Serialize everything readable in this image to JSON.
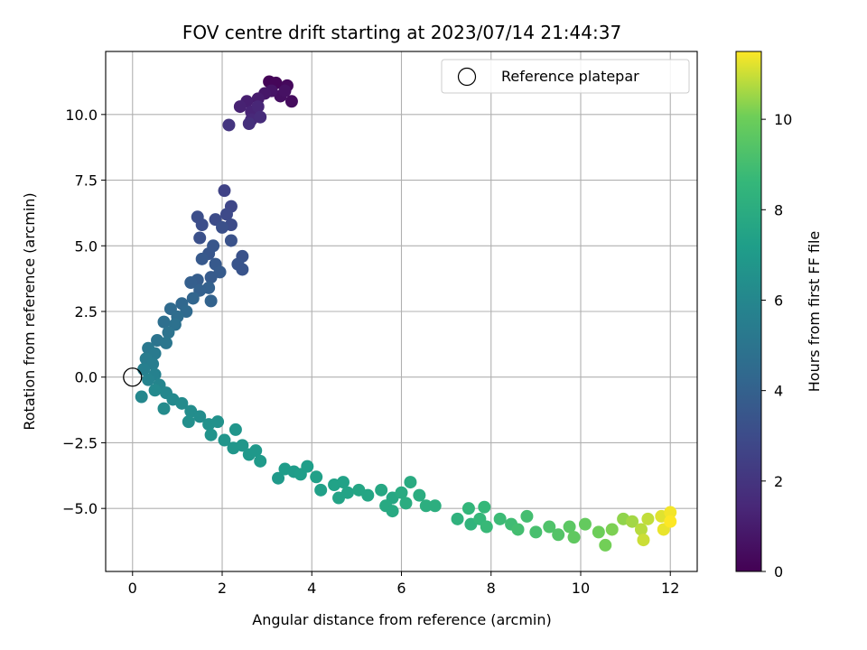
{
  "chart_data": {
    "type": "scatter",
    "title": "FOV centre drift starting at 2023/07/14 21:44:37",
    "xlabel": "Angular distance from reference (arcmin)",
    "ylabel": "Rotation from reference (arcmin)",
    "xlim": [
      -0.6,
      12.6
    ],
    "ylim": [
      -7.4,
      12.4
    ],
    "x_ticks": [
      0,
      2,
      4,
      6,
      8,
      10,
      12
    ],
    "x_tick_labels": [
      "0",
      "2",
      "4",
      "6",
      "8",
      "10",
      "12"
    ],
    "y_ticks": [
      -5.0,
      -2.5,
      0.0,
      2.5,
      5.0,
      7.5,
      10.0
    ],
    "y_tick_labels": [
      "−5.0",
      "−2.5",
      "0.0",
      "2.5",
      "5.0",
      "7.5",
      "10.0"
    ],
    "grid": true,
    "legend": {
      "placement": "top-right",
      "entries": [
        "Reference platepar"
      ]
    },
    "reference_point": {
      "x": 0,
      "y": 0,
      "label": "Reference platepar"
    },
    "colormap": "viridis",
    "colorbar": {
      "label": "Hours from first FF file",
      "range": [
        0,
        11.5
      ],
      "ticks": [
        0,
        2,
        4,
        6,
        8,
        10
      ],
      "tick_labels": [
        "0",
        "2",
        "4",
        "6",
        "8",
        "10"
      ]
    },
    "series": [
      {
        "points": [
          {
            "x": 3.05,
            "y": 11.25,
            "c": 0.1
          },
          {
            "x": 3.2,
            "y": 11.2,
            "c": 0.2
          },
          {
            "x": 3.45,
            "y": 11.1,
            "c": 0.3
          },
          {
            "x": 3.55,
            "y": 10.5,
            "c": 0.4
          },
          {
            "x": 3.3,
            "y": 10.7,
            "c": 0.5
          },
          {
            "x": 3.4,
            "y": 10.9,
            "c": 0.6
          },
          {
            "x": 3.1,
            "y": 10.9,
            "c": 0.7
          },
          {
            "x": 2.95,
            "y": 10.8,
            "c": 0.8
          },
          {
            "x": 2.8,
            "y": 10.6,
            "c": 1.0
          },
          {
            "x": 2.55,
            "y": 10.5,
            "c": 1.1
          },
          {
            "x": 2.4,
            "y": 10.3,
            "c": 1.2
          },
          {
            "x": 2.65,
            "y": 10.1,
            "c": 1.3
          },
          {
            "x": 2.8,
            "y": 10.3,
            "c": 1.4
          },
          {
            "x": 2.65,
            "y": 9.8,
            "c": 1.5
          },
          {
            "x": 2.85,
            "y": 9.9,
            "c": 1.6
          },
          {
            "x": 2.6,
            "y": 9.65,
            "c": 1.8
          },
          {
            "x": 2.15,
            "y": 9.6,
            "c": 2.0
          },
          {
            "x": 2.05,
            "y": 7.1,
            "c": 2.6
          },
          {
            "x": 2.2,
            "y": 6.5,
            "c": 2.8
          },
          {
            "x": 2.1,
            "y": 6.2,
            "c": 2.9
          },
          {
            "x": 1.85,
            "y": 6.0,
            "c": 3.0
          },
          {
            "x": 2.2,
            "y": 5.8,
            "c": 3.0
          },
          {
            "x": 1.45,
            "y": 6.1,
            "c": 3.1
          },
          {
            "x": 1.55,
            "y": 5.8,
            "c": 3.1
          },
          {
            "x": 1.5,
            "y": 5.3,
            "c": 3.2
          },
          {
            "x": 2.0,
            "y": 5.7,
            "c": 3.2
          },
          {
            "x": 2.2,
            "y": 5.2,
            "c": 3.3
          },
          {
            "x": 2.45,
            "y": 4.6,
            "c": 3.3
          },
          {
            "x": 2.35,
            "y": 4.3,
            "c": 3.4
          },
          {
            "x": 2.45,
            "y": 4.1,
            "c": 3.4
          },
          {
            "x": 1.8,
            "y": 5.0,
            "c": 3.5
          },
          {
            "x": 1.7,
            "y": 4.7,
            "c": 3.5
          },
          {
            "x": 1.55,
            "y": 4.5,
            "c": 3.6
          },
          {
            "x": 1.85,
            "y": 4.3,
            "c": 3.6
          },
          {
            "x": 1.95,
            "y": 4.0,
            "c": 3.7
          },
          {
            "x": 1.75,
            "y": 3.8,
            "c": 3.7
          },
          {
            "x": 1.45,
            "y": 3.7,
            "c": 3.8
          },
          {
            "x": 1.3,
            "y": 3.6,
            "c": 3.9
          },
          {
            "x": 1.7,
            "y": 3.4,
            "c": 4.0
          },
          {
            "x": 1.5,
            "y": 3.3,
            "c": 4.0
          },
          {
            "x": 1.75,
            "y": 2.9,
            "c": 4.1
          },
          {
            "x": 1.35,
            "y": 3.0,
            "c": 4.2
          },
          {
            "x": 1.1,
            "y": 2.8,
            "c": 4.3
          },
          {
            "x": 1.2,
            "y": 2.5,
            "c": 4.4
          },
          {
            "x": 0.85,
            "y": 2.6,
            "c": 4.5
          },
          {
            "x": 1.0,
            "y": 2.3,
            "c": 4.6
          },
          {
            "x": 0.7,
            "y": 2.1,
            "c": 4.7
          },
          {
            "x": 0.95,
            "y": 2.0,
            "c": 4.8
          },
          {
            "x": 0.8,
            "y": 1.7,
            "c": 4.9
          },
          {
            "x": 0.55,
            "y": 1.4,
            "c": 5.0
          },
          {
            "x": 0.75,
            "y": 1.3,
            "c": 5.1
          },
          {
            "x": 0.35,
            "y": 1.1,
            "c": 5.2
          },
          {
            "x": 0.5,
            "y": 0.9,
            "c": 5.3
          },
          {
            "x": 0.3,
            "y": 0.7,
            "c": 5.4
          },
          {
            "x": 0.45,
            "y": 0.5,
            "c": 5.5
          },
          {
            "x": 0.25,
            "y": 0.3,
            "c": 5.6
          },
          {
            "x": 0.5,
            "y": 0.1,
            "c": 5.7
          },
          {
            "x": 0.35,
            "y": -0.1,
            "c": 5.8
          },
          {
            "x": 0.6,
            "y": -0.3,
            "c": 5.9
          },
          {
            "x": 0.2,
            "y": -0.75,
            "c": 6.0
          },
          {
            "x": 0.75,
            "y": -0.6,
            "c": 6.0
          },
          {
            "x": 0.5,
            "y": -0.5,
            "c": 6.1
          },
          {
            "x": 0.9,
            "y": -0.85,
            "c": 6.1
          },
          {
            "x": 0.7,
            "y": -1.2,
            "c": 6.2
          },
          {
            "x": 1.1,
            "y": -1.0,
            "c": 6.2
          },
          {
            "x": 1.3,
            "y": -1.3,
            "c": 6.3
          },
          {
            "x": 1.5,
            "y": -1.5,
            "c": 6.3
          },
          {
            "x": 1.25,
            "y": -1.7,
            "c": 6.4
          },
          {
            "x": 1.7,
            "y": -1.8,
            "c": 6.5
          },
          {
            "x": 1.9,
            "y": -1.7,
            "c": 6.5
          },
          {
            "x": 1.75,
            "y": -2.2,
            "c": 6.6
          },
          {
            "x": 2.05,
            "y": -2.4,
            "c": 6.7
          },
          {
            "x": 2.3,
            "y": -2.0,
            "c": 6.7
          },
          {
            "x": 2.25,
            "y": -2.7,
            "c": 6.8
          },
          {
            "x": 2.45,
            "y": -2.6,
            "c": 6.8
          },
          {
            "x": 2.6,
            "y": -2.95,
            "c": 6.9
          },
          {
            "x": 2.75,
            "y": -2.8,
            "c": 6.9
          },
          {
            "x": 2.85,
            "y": -3.2,
            "c": 7.0
          },
          {
            "x": 3.25,
            "y": -3.85,
            "c": 7.0
          },
          {
            "x": 3.4,
            "y": -3.5,
            "c": 7.1
          },
          {
            "x": 3.6,
            "y": -3.6,
            "c": 7.1
          },
          {
            "x": 3.75,
            "y": -3.7,
            "c": 7.2
          },
          {
            "x": 3.9,
            "y": -3.4,
            "c": 7.2
          },
          {
            "x": 4.1,
            "y": -3.8,
            "c": 7.3
          },
          {
            "x": 4.2,
            "y": -4.3,
            "c": 7.3
          },
          {
            "x": 4.5,
            "y": -4.1,
            "c": 7.4
          },
          {
            "x": 4.7,
            "y": -4.0,
            "c": 7.4
          },
          {
            "x": 4.8,
            "y": -4.4,
            "c": 7.5
          },
          {
            "x": 4.6,
            "y": -4.6,
            "c": 7.5
          },
          {
            "x": 5.05,
            "y": -4.3,
            "c": 7.6
          },
          {
            "x": 5.25,
            "y": -4.5,
            "c": 7.6
          },
          {
            "x": 5.55,
            "y": -4.3,
            "c": 7.7
          },
          {
            "x": 5.8,
            "y": -4.6,
            "c": 7.7
          },
          {
            "x": 5.65,
            "y": -4.9,
            "c": 7.8
          },
          {
            "x": 5.8,
            "y": -5.1,
            "c": 7.8
          },
          {
            "x": 6.0,
            "y": -4.4,
            "c": 7.9
          },
          {
            "x": 6.2,
            "y": -4.0,
            "c": 7.9
          },
          {
            "x": 6.4,
            "y": -4.5,
            "c": 8.0
          },
          {
            "x": 6.1,
            "y": -4.8,
            "c": 8.0
          },
          {
            "x": 6.55,
            "y": -4.9,
            "c": 8.1
          },
          {
            "x": 6.75,
            "y": -4.9,
            "c": 8.1
          },
          {
            "x": 7.25,
            "y": -5.4,
            "c": 8.3
          },
          {
            "x": 7.55,
            "y": -5.6,
            "c": 8.4
          },
          {
            "x": 7.5,
            "y": -5.0,
            "c": 8.5
          },
          {
            "x": 7.75,
            "y": -5.4,
            "c": 8.6
          },
          {
            "x": 7.85,
            "y": -4.95,
            "c": 8.6
          },
          {
            "x": 7.9,
            "y": -5.7,
            "c": 8.7
          },
          {
            "x": 8.2,
            "y": -5.4,
            "c": 8.8
          },
          {
            "x": 8.45,
            "y": -5.6,
            "c": 8.9
          },
          {
            "x": 8.6,
            "y": -5.8,
            "c": 9.0
          },
          {
            "x": 8.8,
            "y": -5.3,
            "c": 9.0
          },
          {
            "x": 9.0,
            "y": -5.9,
            "c": 9.1
          },
          {
            "x": 9.3,
            "y": -5.7,
            "c": 9.3
          },
          {
            "x": 9.5,
            "y": -6.0,
            "c": 9.4
          },
          {
            "x": 9.75,
            "y": -5.7,
            "c": 9.6
          },
          {
            "x": 9.85,
            "y": -6.1,
            "c": 9.7
          },
          {
            "x": 10.1,
            "y": -5.6,
            "c": 9.8
          },
          {
            "x": 10.4,
            "y": -5.9,
            "c": 10.0
          },
          {
            "x": 10.55,
            "y": -6.4,
            "c": 10.1
          },
          {
            "x": 10.7,
            "y": -5.8,
            "c": 10.2
          },
          {
            "x": 10.95,
            "y": -5.4,
            "c": 10.4
          },
          {
            "x": 11.15,
            "y": -5.5,
            "c": 10.6
          },
          {
            "x": 11.35,
            "y": -5.8,
            "c": 10.8
          },
          {
            "x": 11.5,
            "y": -5.4,
            "c": 10.9
          },
          {
            "x": 11.4,
            "y": -6.2,
            "c": 11.0
          },
          {
            "x": 11.8,
            "y": -5.3,
            "c": 11.2
          },
          {
            "x": 11.85,
            "y": -5.8,
            "c": 11.3
          },
          {
            "x": 12.0,
            "y": -5.15,
            "c": 11.4
          },
          {
            "x": 12.0,
            "y": -5.5,
            "c": 11.5
          }
        ]
      }
    ]
  }
}
